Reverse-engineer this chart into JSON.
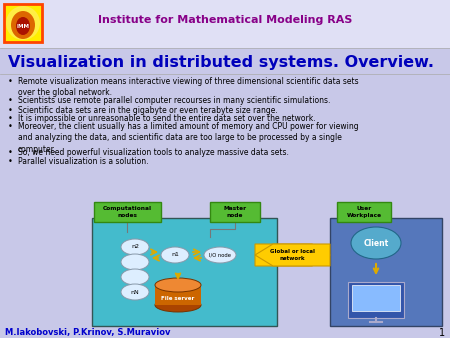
{
  "bg_color": "#c8c8e8",
  "header_bg": "#e0e0f5",
  "header_text": "Institute for Mathematical Modeling RAS",
  "header_color": "#880088",
  "title": "Visualization in distributed systems. Overview.",
  "title_color": "#0000bb",
  "bullet_color": "#000000",
  "bullets": [
    "Remote visualization means interactive viewing of three dimensional scientific data sets\nover the global network.",
    "Scientists use remote parallel computer recourses in many scientific simulations.",
    "Scientific data sets are in the gigabyte or even terabyte size range.",
    "It is impossible or unreasonable to send the entire data set over the network.",
    "Moreover, the client usually has a limited amount of memory and CPU power for viewing\nand analyzing the data, and scientific data are too large to be processed by a single\ncomputer.",
    "So, we need powerful visualization tools to analyze massive data sets.",
    "Parallel visualization is a solution."
  ],
  "footer_text": "M.Iakobovski, P.Krinov, S.Muraviov",
  "footer_color": "#0000cc",
  "page_num": "1",
  "logo_bg": "#ffee00",
  "logo_border": "#ff4400",
  "diag_left_bg": "#44bbcc",
  "diag_right_bg": "#5577bb",
  "label_green": "#55bb33",
  "label_green_dark": "#338811",
  "node_color": "#aaccdd",
  "network_color": "#ffcc00",
  "cylinder_color": "#cc6600",
  "client_color": "#55aacc"
}
